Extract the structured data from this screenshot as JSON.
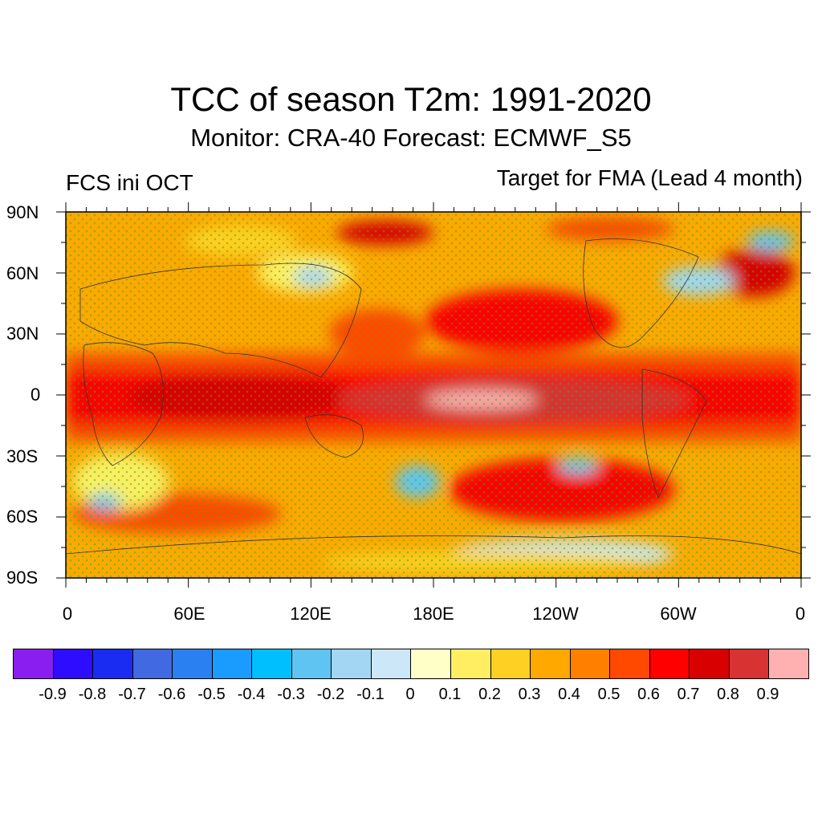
{
  "title": "TCC of season T2m: 1991-2020",
  "subtitle": "Monitor: CRA-40   Forecast: ECMWF_S5",
  "left_label": "FCS ini OCT",
  "right_label": "Target for FMA (Lead 4 month)",
  "lat_labels": [
    "90N",
    "60N",
    "30N",
    "0",
    "30S",
    "60S",
    "90S"
  ],
  "lon_labels": [
    "0",
    "60E",
    "120E",
    "180E",
    "120W",
    "60W",
    "0"
  ],
  "colorbar": {
    "colors": [
      "#8a1ef0",
      "#2e0cff",
      "#1a2cf2",
      "#4169e1",
      "#2a80f0",
      "#1a9cff",
      "#00bfff",
      "#60c4f2",
      "#a2d6f2",
      "#cce8f8",
      "#ffffc8",
      "#ffee62",
      "#ffd024",
      "#ffa800",
      "#ff8000",
      "#ff4800",
      "#ff0000",
      "#d80000",
      "#d83232",
      "#ffb0b0"
    ],
    "labels": [
      "-0.9",
      "-0.8",
      "-0.7",
      "-0.6",
      "-0.5",
      "-0.4",
      "-0.3",
      "-0.2",
      "-0.1",
      "0",
      "0.1",
      "0.2",
      "0.3",
      "0.4",
      "0.5",
      "0.6",
      "0.7",
      "0.8",
      "0.9"
    ]
  },
  "stipple_color": "#22bb22"
}
